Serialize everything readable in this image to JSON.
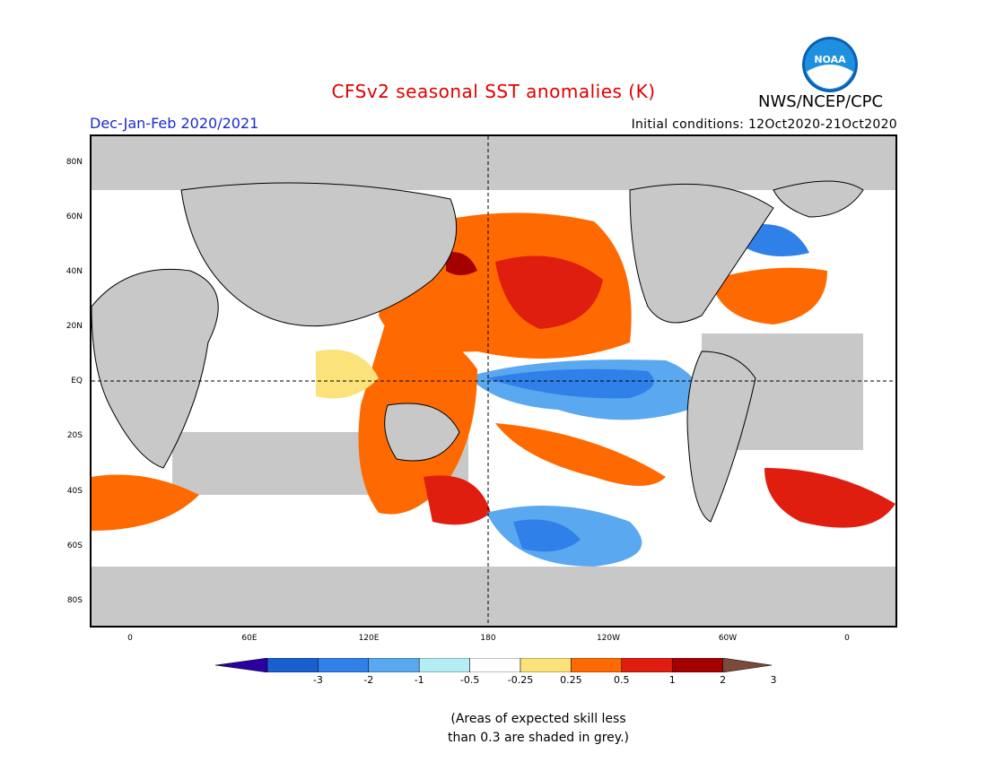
{
  "header": {
    "title": "CFSv2 seasonal SST anomalies (K)",
    "agency": "NWS/NCEP/CPC",
    "season": "Dec-Jan-Feb 2020/2021",
    "initial_conditions": "Initial conditions: 12Oct2020-21Oct2020",
    "logo_text": "NOAA"
  },
  "map": {
    "y_axis_labels": [
      "80N",
      "60N",
      "40N",
      "20N",
      "EQ",
      "20S",
      "40S",
      "60S",
      "80S"
    ],
    "x_axis_labels": [
      "0",
      "60E",
      "120E",
      "180",
      "120W",
      "60W",
      "0"
    ]
  },
  "colorbar": {
    "labels": [
      "-3",
      "-2",
      "-1",
      "-0.5",
      "-0.25",
      "0.25",
      "0.5",
      "1",
      "2",
      "3"
    ],
    "colors": [
      "#2a00a0",
      "#1a5fd0",
      "#2f80e8",
      "#5aa8f0",
      "#b4eef4",
      "#ffffff",
      "#fce27a",
      "#ff6a00",
      "#e01e10",
      "#a50000",
      "#7a4a3a"
    ],
    "land_color": "#c8c8c8"
  },
  "note": {
    "line1": "(Areas of expected skill less",
    "line2": "than 0.3 are shaded in grey.)"
  }
}
